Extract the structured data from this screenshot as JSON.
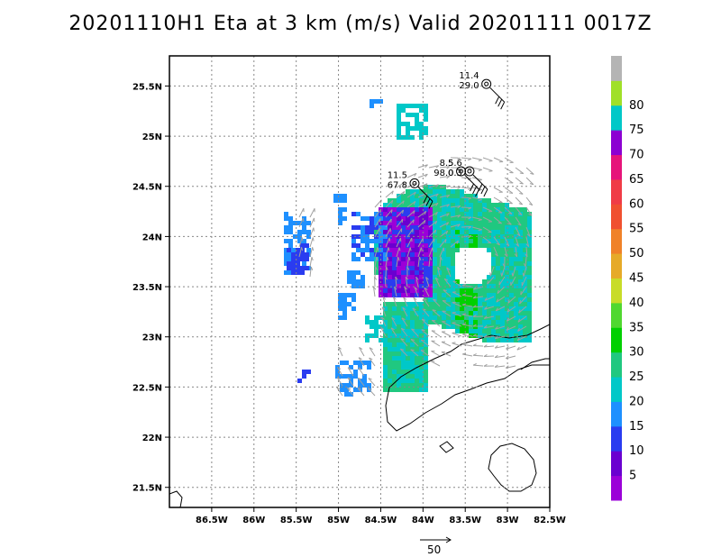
{
  "title": "20201110H1 Eta at 3 km (m/s) Valid 20201111 0017Z",
  "map": {
    "lon_range": [
      -87.0,
      -82.5
    ],
    "lat_range": [
      21.3,
      25.8
    ],
    "lon_ticks": [
      "86.5W",
      "86W",
      "85.5W",
      "85W",
      "84.5W",
      "84W",
      "83.5W",
      "83W",
      "82.5W"
    ],
    "lat_ticks": [
      "25.5N",
      "25N",
      "24.5N",
      "24N",
      "23.5N",
      "23N",
      "22.5N",
      "22N",
      "21.5N"
    ],
    "grid": "dotted"
  },
  "colorbar": {
    "levels": [
      5,
      10,
      15,
      20,
      25,
      30,
      35,
      40,
      45,
      50,
      55,
      60,
      65,
      70,
      75,
      80
    ],
    "colors": [
      "#9b00d8",
      "#6a00d0",
      "#2a3cf0",
      "#1e90ff",
      "#00c8c8",
      "#20c880",
      "#00d000",
      "#50d830",
      "#c8dc28",
      "#e6aa28",
      "#f08228",
      "#f05030",
      "#f03c46",
      "#e6147a",
      "#8c00d2",
      "#00c8c8",
      "#a0e028",
      "#b4b4b4"
    ]
  },
  "stations": [
    {
      "lon": -83.25,
      "lat": 25.52,
      "top": "11.4",
      "bottom": "29.0"
    },
    {
      "lon": -84.1,
      "lat": 24.53,
      "top": "11.5",
      "bottom": "67.8"
    },
    {
      "lon": -83.55,
      "lat": 24.65,
      "top": "8.5",
      "bottom": "98.0"
    },
    {
      "lon": -83.45,
      "lat": 24.65,
      "top": "5.6",
      "bottom": "0.3"
    }
  ],
  "reference_vector": {
    "label": "50"
  }
}
